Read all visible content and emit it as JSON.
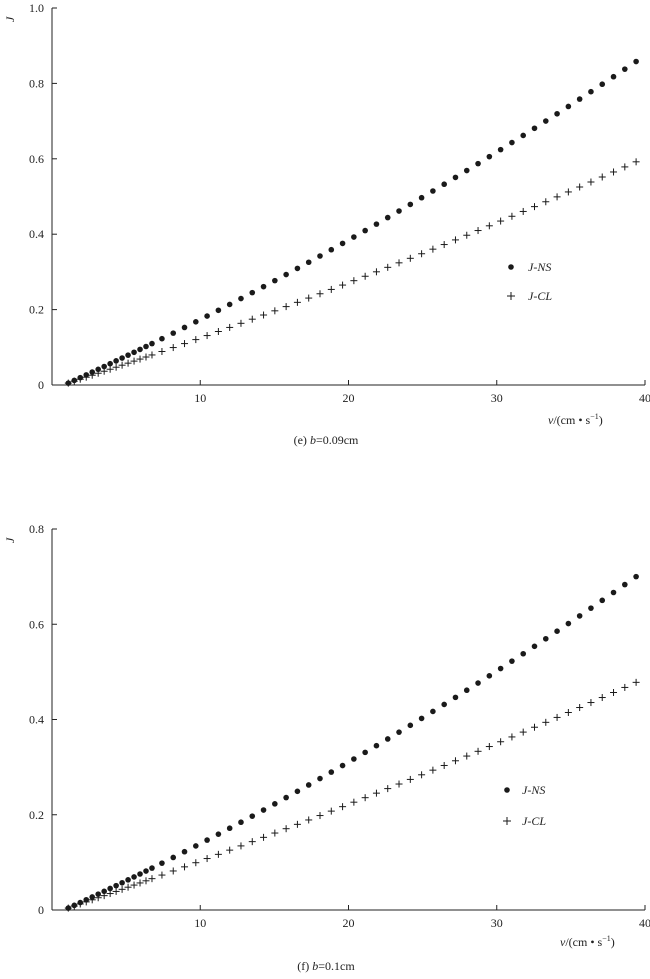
{
  "chart_data": [
    {
      "type": "scatter",
      "panel": "e",
      "caption": "(e) b=0.09cm",
      "caption_parts": {
        "prefix": "(e) ",
        "var": "b",
        "rest": "=0.09cm"
      },
      "ylabel": "J",
      "xlabel": "v/(cm • s",
      "xlabel_sup": "−1",
      "xlabel_close": ")",
      "xlim": [
        0,
        40
      ],
      "ylim": [
        0,
        1.0
      ],
      "xticks": [
        10,
        20,
        30,
        40
      ],
      "yticks": [
        0,
        0.2,
        0.4,
        0.6,
        0.8,
        1.0
      ],
      "xtick_labels": [
        "10",
        "20",
        "30",
        "40"
      ],
      "ytick_labels": [
        "0",
        "0.2",
        "0.4",
        "0.6",
        "0.8",
        "1.0"
      ],
      "legend_position": "right-middle",
      "series": [
        {
          "name": "J-NS",
          "marker": "dot",
          "x_start": 1.1,
          "x_end": 39.4,
          "y_start": 0.005,
          "y_end": 0.858,
          "y_mid": 0.39,
          "count": 58
        },
        {
          "name": "J-CL",
          "marker": "plus",
          "x_start": 1.1,
          "x_end": 39.4,
          "y_start": 0.005,
          "y_end": 0.592,
          "y_mid": 0.275,
          "count": 58
        }
      ]
    },
    {
      "type": "scatter",
      "panel": "f",
      "caption": "(f) b=0.1cm",
      "caption_parts": {
        "prefix": "(f) ",
        "var": "b",
        "rest": "=0.1cm"
      },
      "ylabel": "J",
      "xlabel": "v/(cm • s",
      "xlabel_sup": "−1",
      "xlabel_close": ")",
      "xlim": [
        0,
        40
      ],
      "ylim": [
        0,
        0.8
      ],
      "xticks": [
        10,
        20,
        30,
        40
      ],
      "yticks": [
        0,
        0.2,
        0.4,
        0.6,
        0.8
      ],
      "xtick_labels": [
        "10",
        "20",
        "30",
        "40"
      ],
      "ytick_labels": [
        "0",
        "0.2",
        "0.4",
        "0.6",
        "0.8"
      ],
      "legend_position": "right-middle",
      "series": [
        {
          "name": "J-NS",
          "marker": "dot",
          "x_start": 1.1,
          "x_end": 39.4,
          "y_start": 0.004,
          "y_end": 0.7,
          "y_mid": 0.315,
          "count": 58
        },
        {
          "name": "J-CL",
          "marker": "plus",
          "x_start": 1.1,
          "x_end": 39.4,
          "y_start": 0.004,
          "y_end": 0.478,
          "y_mid": 0.225,
          "count": 58
        }
      ]
    }
  ]
}
